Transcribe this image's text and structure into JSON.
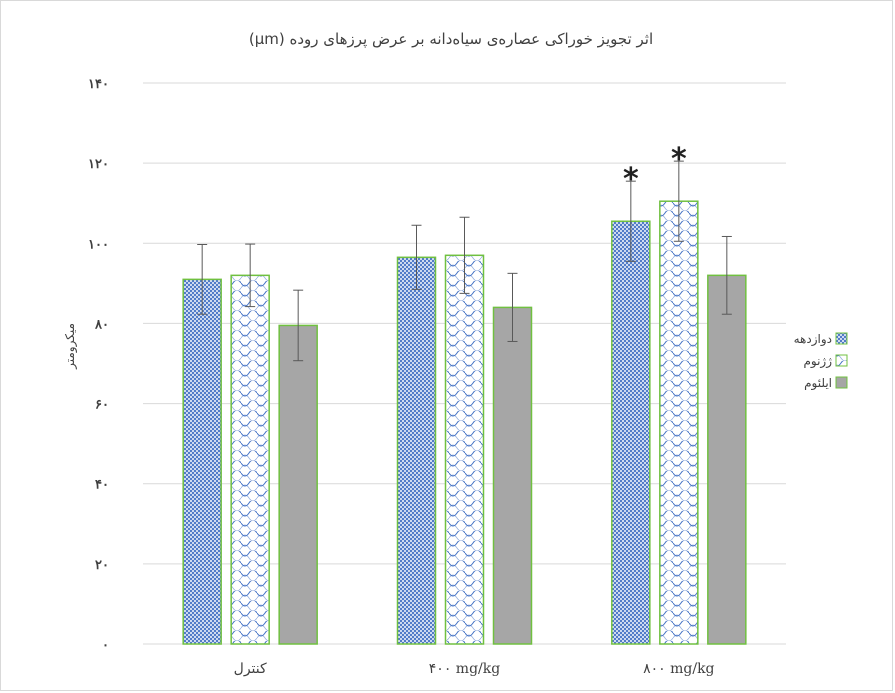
{
  "chart_data": {
    "type": "bar",
    "title": "اثر تجویز خوراکی عصاره‌ی سیاه‌دانه بر عرض پرزهای روده (µm)",
    "ylabel": "میکرومتر",
    "xlabel": "",
    "ylim": [
      0,
      140
    ],
    "yticks": [
      0,
      20,
      40,
      60,
      80,
      100,
      120,
      140
    ],
    "ytick_labels": [
      "۰",
      "۲۰",
      "۴۰",
      "۶۰",
      "۸۰",
      "۱۰۰",
      "۱۲۰",
      "۱۴۰"
    ],
    "categories": [
      "کنترل",
      "۴۰۰ mg/kg",
      "۸۰۰ mg/kg"
    ],
    "series": [
      {
        "name": "دوازدهه",
        "values": [
          91,
          96.5,
          105.5
        ],
        "errors": [
          8.7,
          8,
          10
        ],
        "pattern": "grid",
        "color": "#4472c4"
      },
      {
        "name": "ژژنوم",
        "values": [
          92,
          97,
          110.5
        ],
        "errors": [
          7.8,
          9.5,
          10
        ],
        "pattern": "wave",
        "color": "#4472c4"
      },
      {
        "name": "ایلئوم",
        "values": [
          79.5,
          84,
          92
        ],
        "errors": [
          8.8,
          8.5,
          9.7
        ],
        "pattern": "solid",
        "color": "#a6a6a6"
      }
    ],
    "significance": [
      {
        "series": 0,
        "category": 2,
        "label": "*"
      },
      {
        "series": 1,
        "category": 2,
        "label": "*"
      }
    ],
    "grid": true,
    "legend_position": "right",
    "bar_outline_color": "#70c040"
  }
}
